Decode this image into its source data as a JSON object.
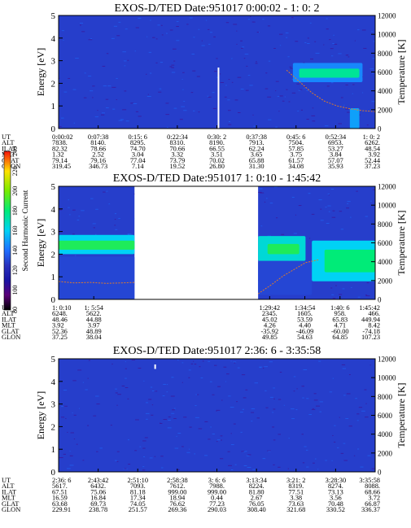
{
  "chart_data": [
    {
      "type": "heatmap",
      "title": "EXOS-D/TED   Date:951017  0:00:02 - 1: 0: 2",
      "ylabel": "Energy [eV]",
      "ylabel_right": "Temperature [K]",
      "ylim": [
        0,
        5
      ],
      "y_ticks": [
        0,
        1,
        2,
        3,
        4,
        5
      ],
      "ylim_right": [
        0,
        12000
      ],
      "y_ticks_right": [
        0,
        2000,
        4000,
        6000,
        8000,
        10000,
        12000
      ],
      "data_coverage": [
        [
          0,
          1
        ]
      ],
      "bands": [
        {
          "t0": 0.74,
          "t1": 0.96,
          "e0": 2.05,
          "e1": 2.9,
          "level": 145
        },
        {
          "t0": 0.76,
          "t1": 0.95,
          "e0": 2.25,
          "e1": 2.65,
          "level": 175
        },
        {
          "t0": 0.92,
          "t1": 0.95,
          "e0": 0.0,
          "e1": 0.9,
          "level": 150
        }
      ],
      "spikes": [
        {
          "t": 0.505,
          "e0": 0,
          "e1": 2.7
        }
      ],
      "temperature_trace": {
        "t": [
          0.72,
          0.76,
          0.8,
          0.84,
          0.88,
          0.92,
          0.96,
          1.0
        ],
        "temp_K": [
          6200,
          5000,
          3800,
          2900,
          2400,
          2100,
          1900,
          1800
        ]
      },
      "rows": [
        {
          "label": "UT",
          "values": [
            "0:00:02",
            "0:07:38",
            "0:15: 6",
            "0:22:34",
            "0:30: 2",
            "0:37:38",
            "0:45: 6",
            "0:52:34",
            "1: 0: 2"
          ]
        },
        {
          "label": "ALT",
          "values": [
            "7838.",
            "8140.",
            "8295.",
            "8310.",
            "8190.",
            "7913.",
            "7504.",
            "6953.",
            "6262."
          ]
        },
        {
          "label": "ILAT",
          "values": [
            "82.32",
            "78.66",
            "74.70",
            "70.66",
            "66.55",
            "62.24",
            "57.85",
            "53.27",
            "48.54"
          ]
        },
        {
          "label": "MLT",
          "values": [
            "1.32",
            "2.52",
            "3.04",
            "3.32",
            "3.51",
            "3.65",
            "3.75",
            "3.84",
            "3.92"
          ]
        },
        {
          "label": "GLAT",
          "values": [
            "79.14",
            "79.16",
            "77.04",
            "73.79",
            "70.02",
            "65.88",
            "61.57",
            "57.07",
            "52.44"
          ]
        },
        {
          "label": "GLON",
          "values": [
            "319.45",
            "346.73",
            "7.14",
            "19.52",
            "26.80",
            "31.30",
            "34.08",
            "35.93",
            "37.23"
          ]
        }
      ]
    },
    {
      "type": "heatmap",
      "title": "EXOS-D/TED   Date:951017  1: 0:10 - 1:45:42",
      "ylabel": "Energy [eV]",
      "ylabel_right": "Temperature [K]",
      "ylim": [
        0,
        5
      ],
      "y_ticks": [
        0,
        1,
        2,
        3,
        4,
        5
      ],
      "ylim_right": [
        0,
        12000
      ],
      "y_ticks_right": [
        0,
        2000,
        4000,
        6000,
        8000,
        10000,
        12000
      ],
      "data_coverage": [
        [
          0,
          0.24
        ],
        [
          0.63,
          1
        ]
      ],
      "bands": [
        {
          "t0": 0.0,
          "t1": 0.24,
          "e0": 2.0,
          "e1": 2.85,
          "level": 160
        },
        {
          "t0": 0.0,
          "t1": 0.24,
          "e0": 2.2,
          "e1": 2.6,
          "level": 185
        },
        {
          "t0": 0.0,
          "t1": 0.24,
          "e0": 0.0,
          "e1": 1.9,
          "level": 130
        },
        {
          "t0": 0.63,
          "t1": 0.78,
          "e0": 1.7,
          "e1": 2.8,
          "level": 165
        },
        {
          "t0": 0.66,
          "t1": 0.76,
          "e0": 2.0,
          "e1": 2.45,
          "level": 185
        },
        {
          "t0": 0.63,
          "t1": 0.8,
          "e0": 0.2,
          "e1": 1.7,
          "level": 130
        },
        {
          "t0": 0.8,
          "t1": 1.0,
          "e0": 0.8,
          "e1": 2.6,
          "level": 160
        },
        {
          "t0": 0.84,
          "t1": 1.0,
          "e0": 1.2,
          "e1": 2.2,
          "level": 180
        }
      ],
      "spikes": [],
      "temperature_trace": {
        "t": [
          0.0,
          0.05,
          0.1,
          0.15,
          0.2,
          0.24,
          0.63,
          0.67,
          0.71,
          0.75,
          0.78,
          0.82
        ],
        "temp_K": [
          1900,
          1750,
          1800,
          1700,
          1750,
          1800,
          600,
          1500,
          2500,
          3300,
          3900,
          4200
        ]
      },
      "colorbar": {
        "label": "Second Harmonic Current",
        "ticks": [
          80,
          100,
          120,
          140,
          160,
          180,
          200,
          220,
          240
        ]
      },
      "rows": [
        {
          "label": "UT",
          "values": [
            "1: 0:10",
            "1: 5:54",
            "",
            "",
            "",
            "",
            "1:29:42",
            "1:34:54",
            "1:40: 6",
            "1:45:42"
          ]
        },
        {
          "label": "ALT",
          "values": [
            "6248.",
            "5622.",
            "",
            "",
            "",
            "",
            "2345.",
            "1605.",
            "958.",
            "466."
          ]
        },
        {
          "label": "ILAT",
          "values": [
            "48.46",
            "44.88",
            "",
            "",
            "",
            "",
            "45.02",
            "53.59",
            "65.83",
            "449.94"
          ]
        },
        {
          "label": "MLT",
          "values": [
            "3.92",
            "3.97",
            "",
            "",
            "",
            "",
            "4.26",
            "4.40",
            "4.71",
            "8.42"
          ]
        },
        {
          "label": "GLAT",
          "values": [
            "52.36",
            "48.89",
            "",
            "",
            "",
            "",
            "-35.92",
            "-46.09",
            "-60.00",
            "-74.18"
          ]
        },
        {
          "label": "GLON",
          "values": [
            "37.25",
            "38.04",
            "",
            "",
            "",
            "",
            "49.85",
            "54.63",
            "64.85",
            "107.23"
          ]
        }
      ]
    },
    {
      "type": "heatmap",
      "title": "EXOS-D/TED   Date:951017  2:36: 6 - 3:35:58",
      "ylabel": "Energy [eV]",
      "ylabel_right": "Temperature [K]",
      "ylim": [
        0,
        5
      ],
      "y_ticks": [
        0,
        1,
        2,
        3,
        4,
        5
      ],
      "ylim_right": [
        0,
        12000
      ],
      "y_ticks_right": [
        0,
        2000,
        4000,
        6000,
        8000,
        10000,
        12000
      ],
      "data_coverage": [
        [
          0,
          1
        ]
      ],
      "bands": [],
      "spikes": [
        {
          "t": 0.305,
          "e0": 4.55,
          "e1": 4.75
        }
      ],
      "temperature_trace": null,
      "rows": [
        {
          "label": "UT",
          "values": [
            "2:36: 6",
            "2:43:42",
            "2:51:10",
            "2:58:38",
            "3: 6: 6",
            "3:13:34",
            "3:21: 2",
            "3:28:30",
            "3:35:58"
          ]
        },
        {
          "label": "ALT",
          "values": [
            "5617.",
            "6432.",
            "7093.",
            "7612.",
            "7988.",
            "8224.",
            "8319.",
            "8274.",
            "8088."
          ]
        },
        {
          "label": "ILAT",
          "values": [
            "67.51",
            "75.06",
            "81.18",
            "999.00",
            "999.00",
            "81.80",
            "77.51",
            "73.13",
            "68.66"
          ]
        },
        {
          "label": "MLT",
          "values": [
            "16.59",
            "16.84",
            "17.34",
            "18.94",
            "0.44",
            "2.67",
            "3.38",
            "3.56",
            "3.72"
          ]
        },
        {
          "label": "GLAT",
          "values": [
            "63.68",
            "69.73",
            "74.05",
            "76.62",
            "77.23",
            "76.05",
            "73.63",
            "70.48",
            "66.87"
          ]
        },
        {
          "label": "GLON",
          "values": [
            "229.91",
            "238.78",
            "251.57",
            "269.36",
            "290.03",
            "308.40",
            "321.68",
            "330.52",
            "336.37"
          ]
        }
      ]
    }
  ]
}
